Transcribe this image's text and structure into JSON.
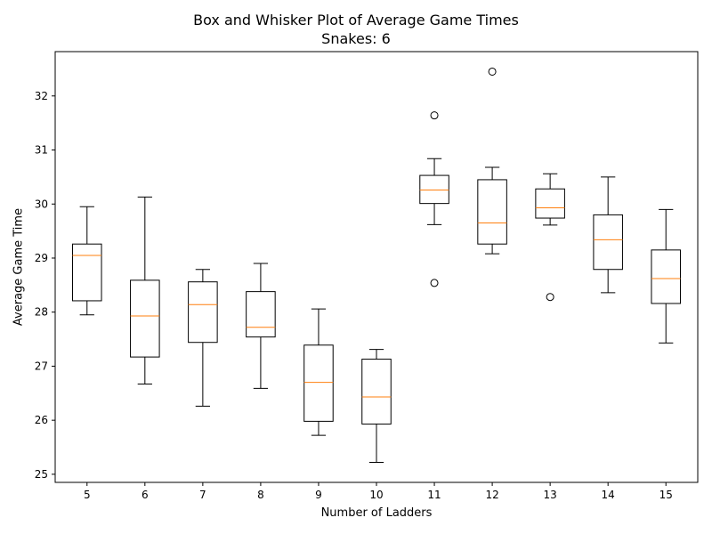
{
  "chart_data": {
    "type": "boxplot",
    "title": "Box and Whisker Plot of Average Game Times",
    "subtitle": "Snakes: 6",
    "xlabel": "Number of Ladders",
    "ylabel": "Average Game Time",
    "ylim": [
      24.85,
      32.82
    ],
    "yticks": [
      25,
      26,
      27,
      28,
      29,
      30,
      31,
      32
    ],
    "categories": [
      "5",
      "6",
      "7",
      "8",
      "9",
      "10",
      "11",
      "12",
      "13",
      "14",
      "15"
    ],
    "boxes": [
      {
        "category": "5",
        "whisker_low": 27.95,
        "q1": 28.21,
        "median": 29.05,
        "q3": 29.26,
        "whisker_high": 29.95,
        "outliers": []
      },
      {
        "category": "6",
        "whisker_low": 26.67,
        "q1": 27.17,
        "median": 27.93,
        "q3": 28.59,
        "whisker_high": 30.13,
        "outliers": []
      },
      {
        "category": "7",
        "whisker_low": 26.26,
        "q1": 27.44,
        "median": 28.14,
        "q3": 28.56,
        "whisker_high": 28.79,
        "outliers": []
      },
      {
        "category": "8",
        "whisker_low": 26.59,
        "q1": 27.54,
        "median": 27.72,
        "q3": 28.38,
        "whisker_high": 28.9,
        "outliers": []
      },
      {
        "category": "9",
        "whisker_low": 25.72,
        "q1": 25.98,
        "median": 26.7,
        "q3": 27.39,
        "whisker_high": 28.06,
        "outliers": []
      },
      {
        "category": "10",
        "whisker_low": 25.22,
        "q1": 25.93,
        "median": 26.43,
        "q3": 27.13,
        "whisker_high": 27.31,
        "outliers": []
      },
      {
        "category": "11",
        "whisker_low": 29.62,
        "q1": 30.01,
        "median": 30.26,
        "q3": 30.53,
        "whisker_high": 30.84,
        "outliers": [
          31.64,
          28.54
        ]
      },
      {
        "category": "12",
        "whisker_low": 29.08,
        "q1": 29.26,
        "median": 29.65,
        "q3": 30.45,
        "whisker_high": 30.68,
        "outliers": [
          32.45
        ]
      },
      {
        "category": "13",
        "whisker_low": 29.61,
        "q1": 29.74,
        "median": 29.93,
        "q3": 30.28,
        "whisker_high": 30.56,
        "outliers": [
          28.28
        ]
      },
      {
        "category": "14",
        "whisker_low": 28.36,
        "q1": 28.79,
        "median": 29.34,
        "q3": 29.8,
        "whisker_high": 30.5,
        "outliers": []
      },
      {
        "category": "15",
        "whisker_low": 27.43,
        "q1": 28.16,
        "median": 28.62,
        "q3": 29.15,
        "whisker_high": 29.9,
        "outliers": []
      }
    ],
    "colors": {
      "box": "#000000",
      "median": "#ff7f0e",
      "outlier": "#000000",
      "axes": "#000000",
      "background": "#ffffff"
    },
    "grid": false,
    "legend": "none"
  }
}
